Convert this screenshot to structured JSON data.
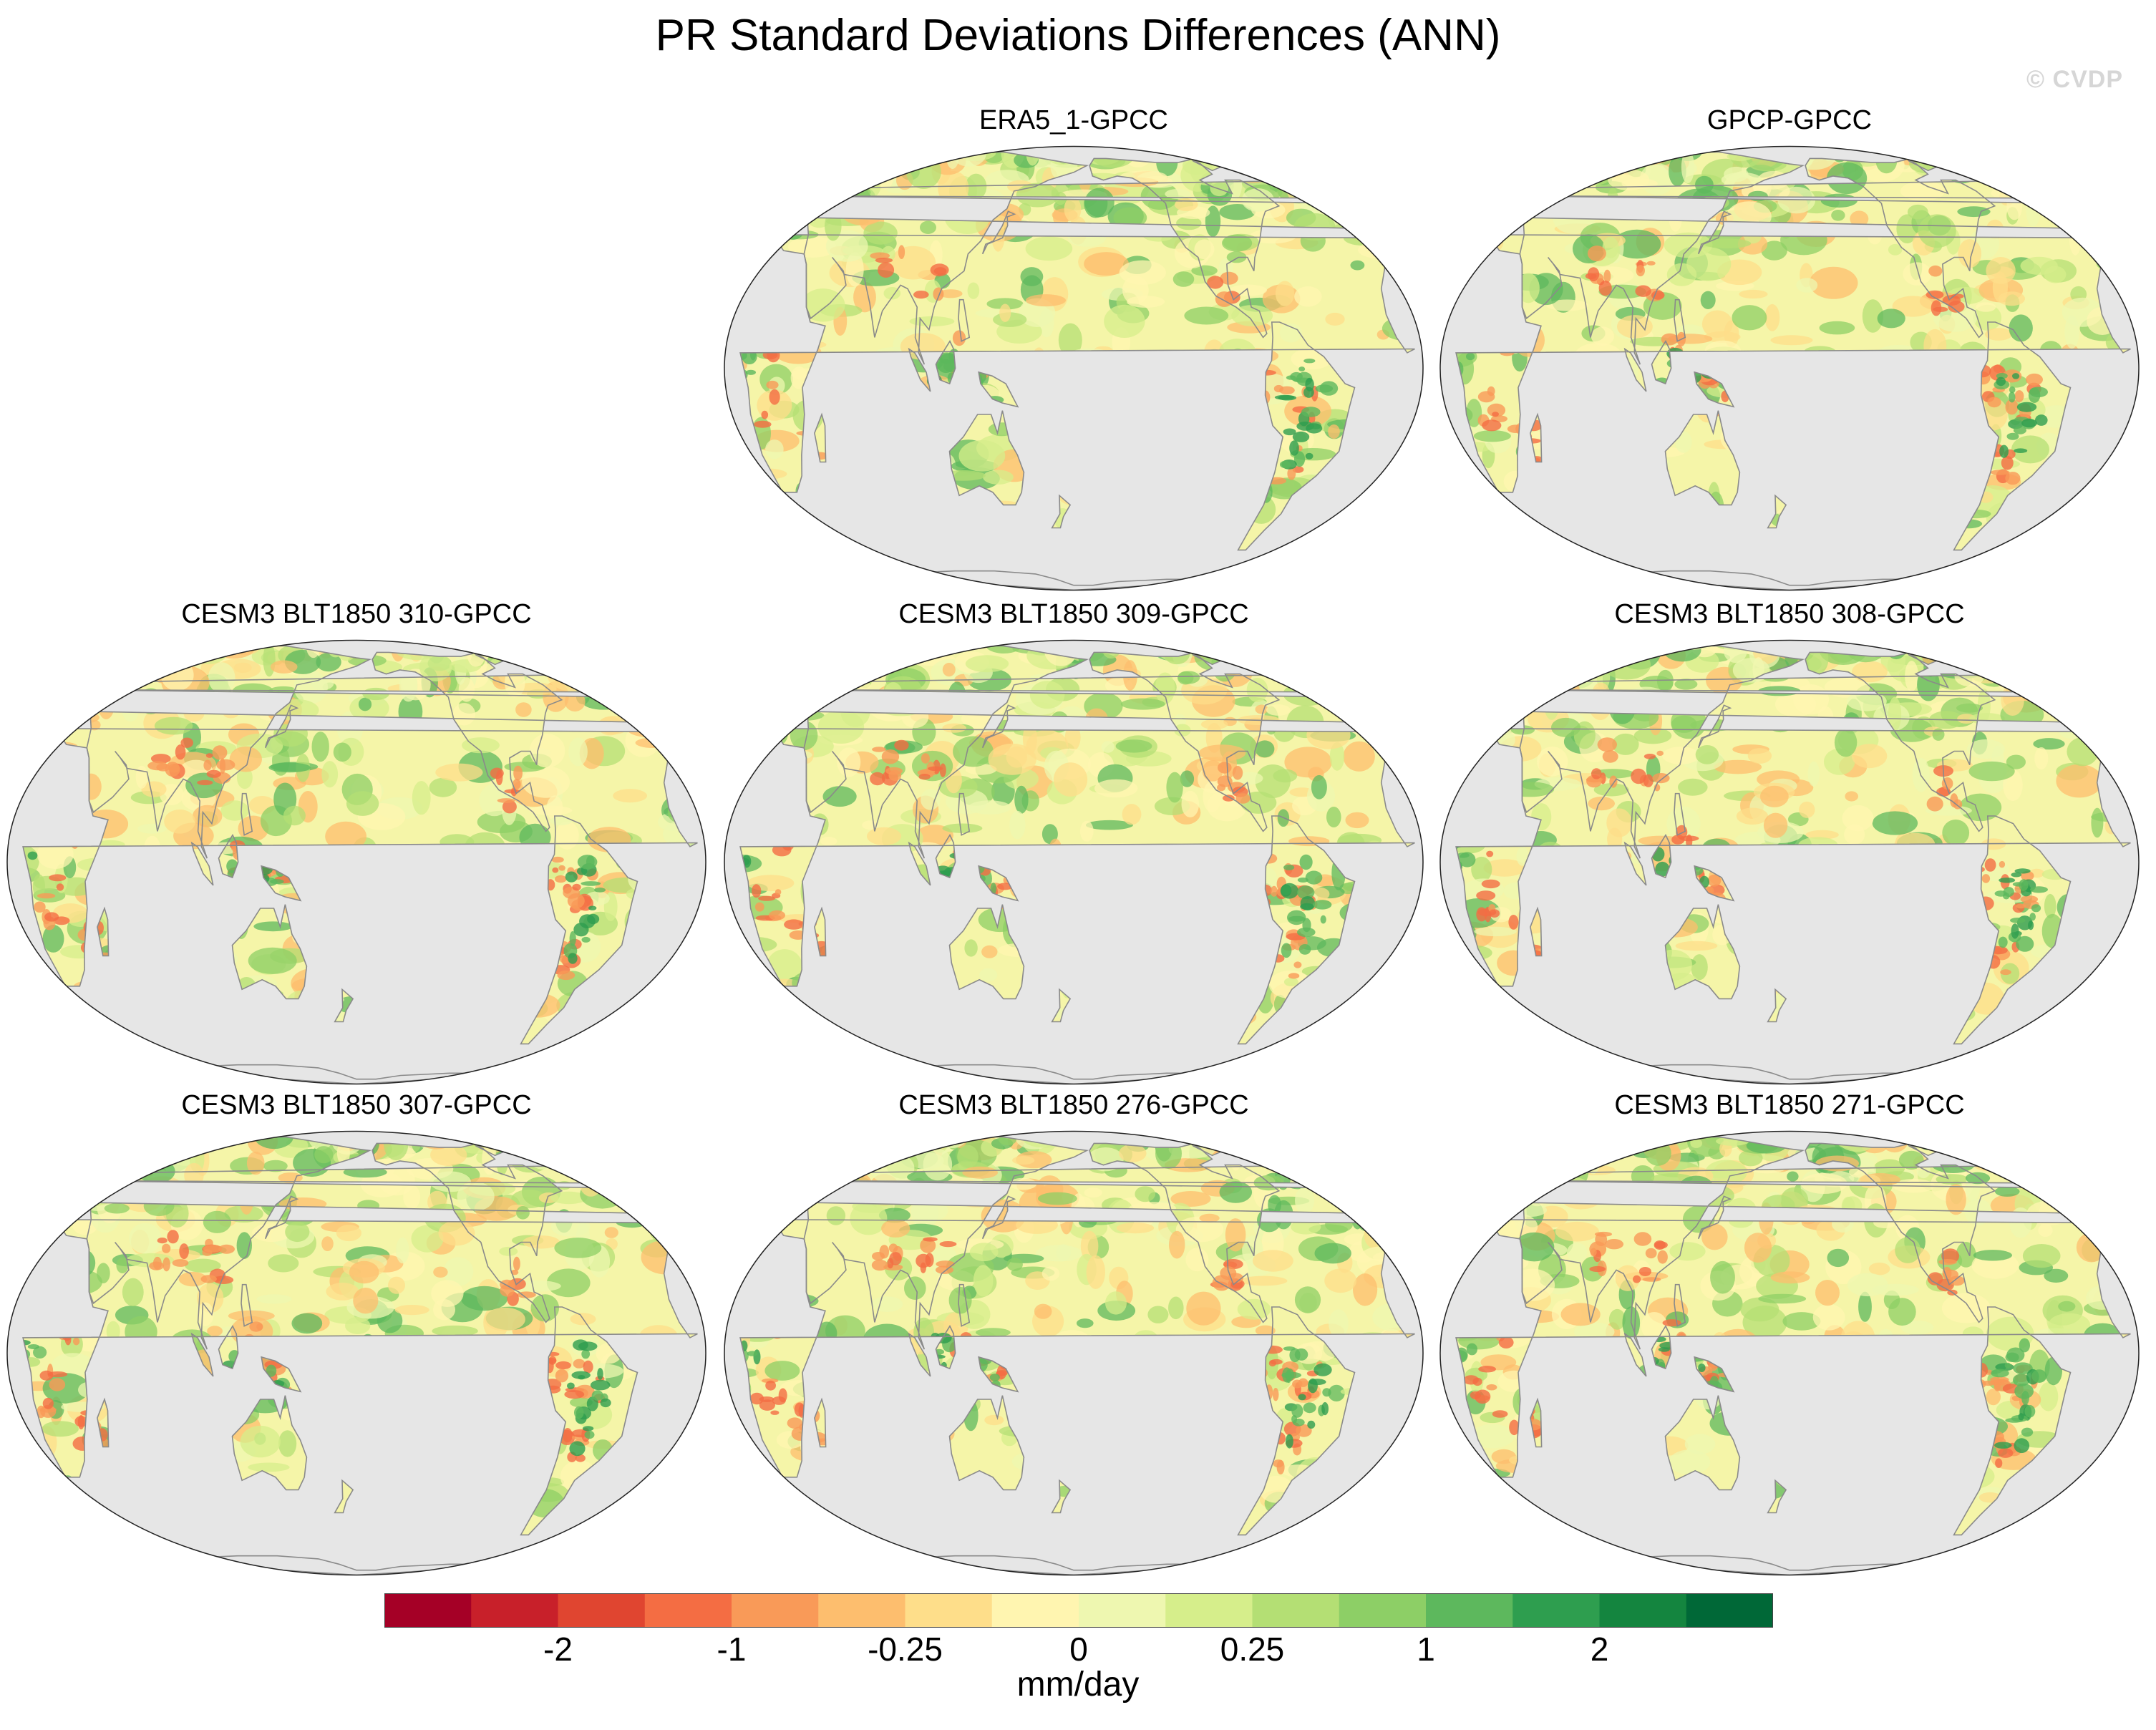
{
  "title": "PR Standard Deviations Differences (ANN)",
  "watermark": "© CVDP",
  "panels": [
    {
      "title": "ERA5_1-GPCC",
      "style": {
        "wet_pacific": 0.8,
        "red_bias": 0.2
      }
    },
    {
      "title": "GPCP-GPCC",
      "style": {
        "wet_pacific": 0.5,
        "red_bias": 0.6
      }
    },
    {
      "title": "CESM3 BLT1850 310-GPCC",
      "style": {
        "wet_pacific": 0.4,
        "red_bias": 0.9
      }
    },
    {
      "title": "CESM3 BLT1850 309-GPCC",
      "style": {
        "wet_pacific": 0.5,
        "red_bias": 0.8
      }
    },
    {
      "title": "CESM3 BLT1850 308-GPCC",
      "style": {
        "wet_pacific": 0.6,
        "red_bias": 0.7
      }
    },
    {
      "title": "CESM3 BLT1850 307-GPCC",
      "style": {
        "wet_pacific": 0.5,
        "red_bias": 0.8
      }
    },
    {
      "title": "CESM3 BLT1850 276-GPCC",
      "style": {
        "wet_pacific": 0.6,
        "red_bias": 0.8
      }
    },
    {
      "title": "CESM3 BLT1850 271-GPCC",
      "style": {
        "wet_pacific": 0.6,
        "red_bias": 0.8
      }
    }
  ],
  "colorbar": {
    "colors": [
      "#a50026",
      "#c8202a",
      "#e04530",
      "#f46d43",
      "#f99a58",
      "#fdbe6e",
      "#fede8a",
      "#fff5b0",
      "#eef7b0",
      "#d6ee8b",
      "#b4df74",
      "#8dcf66",
      "#5db85d",
      "#2e9e4f",
      "#14853f",
      "#006837"
    ],
    "tick_labels": [
      "-2",
      "-1",
      "-0.25",
      "0",
      "0.25",
      "1",
      "2"
    ],
    "units": "mm/day"
  },
  "map_colors": {
    "ocean": "#e6e6e6",
    "coast": "#8a8a8a",
    "outline": "#222222"
  }
}
